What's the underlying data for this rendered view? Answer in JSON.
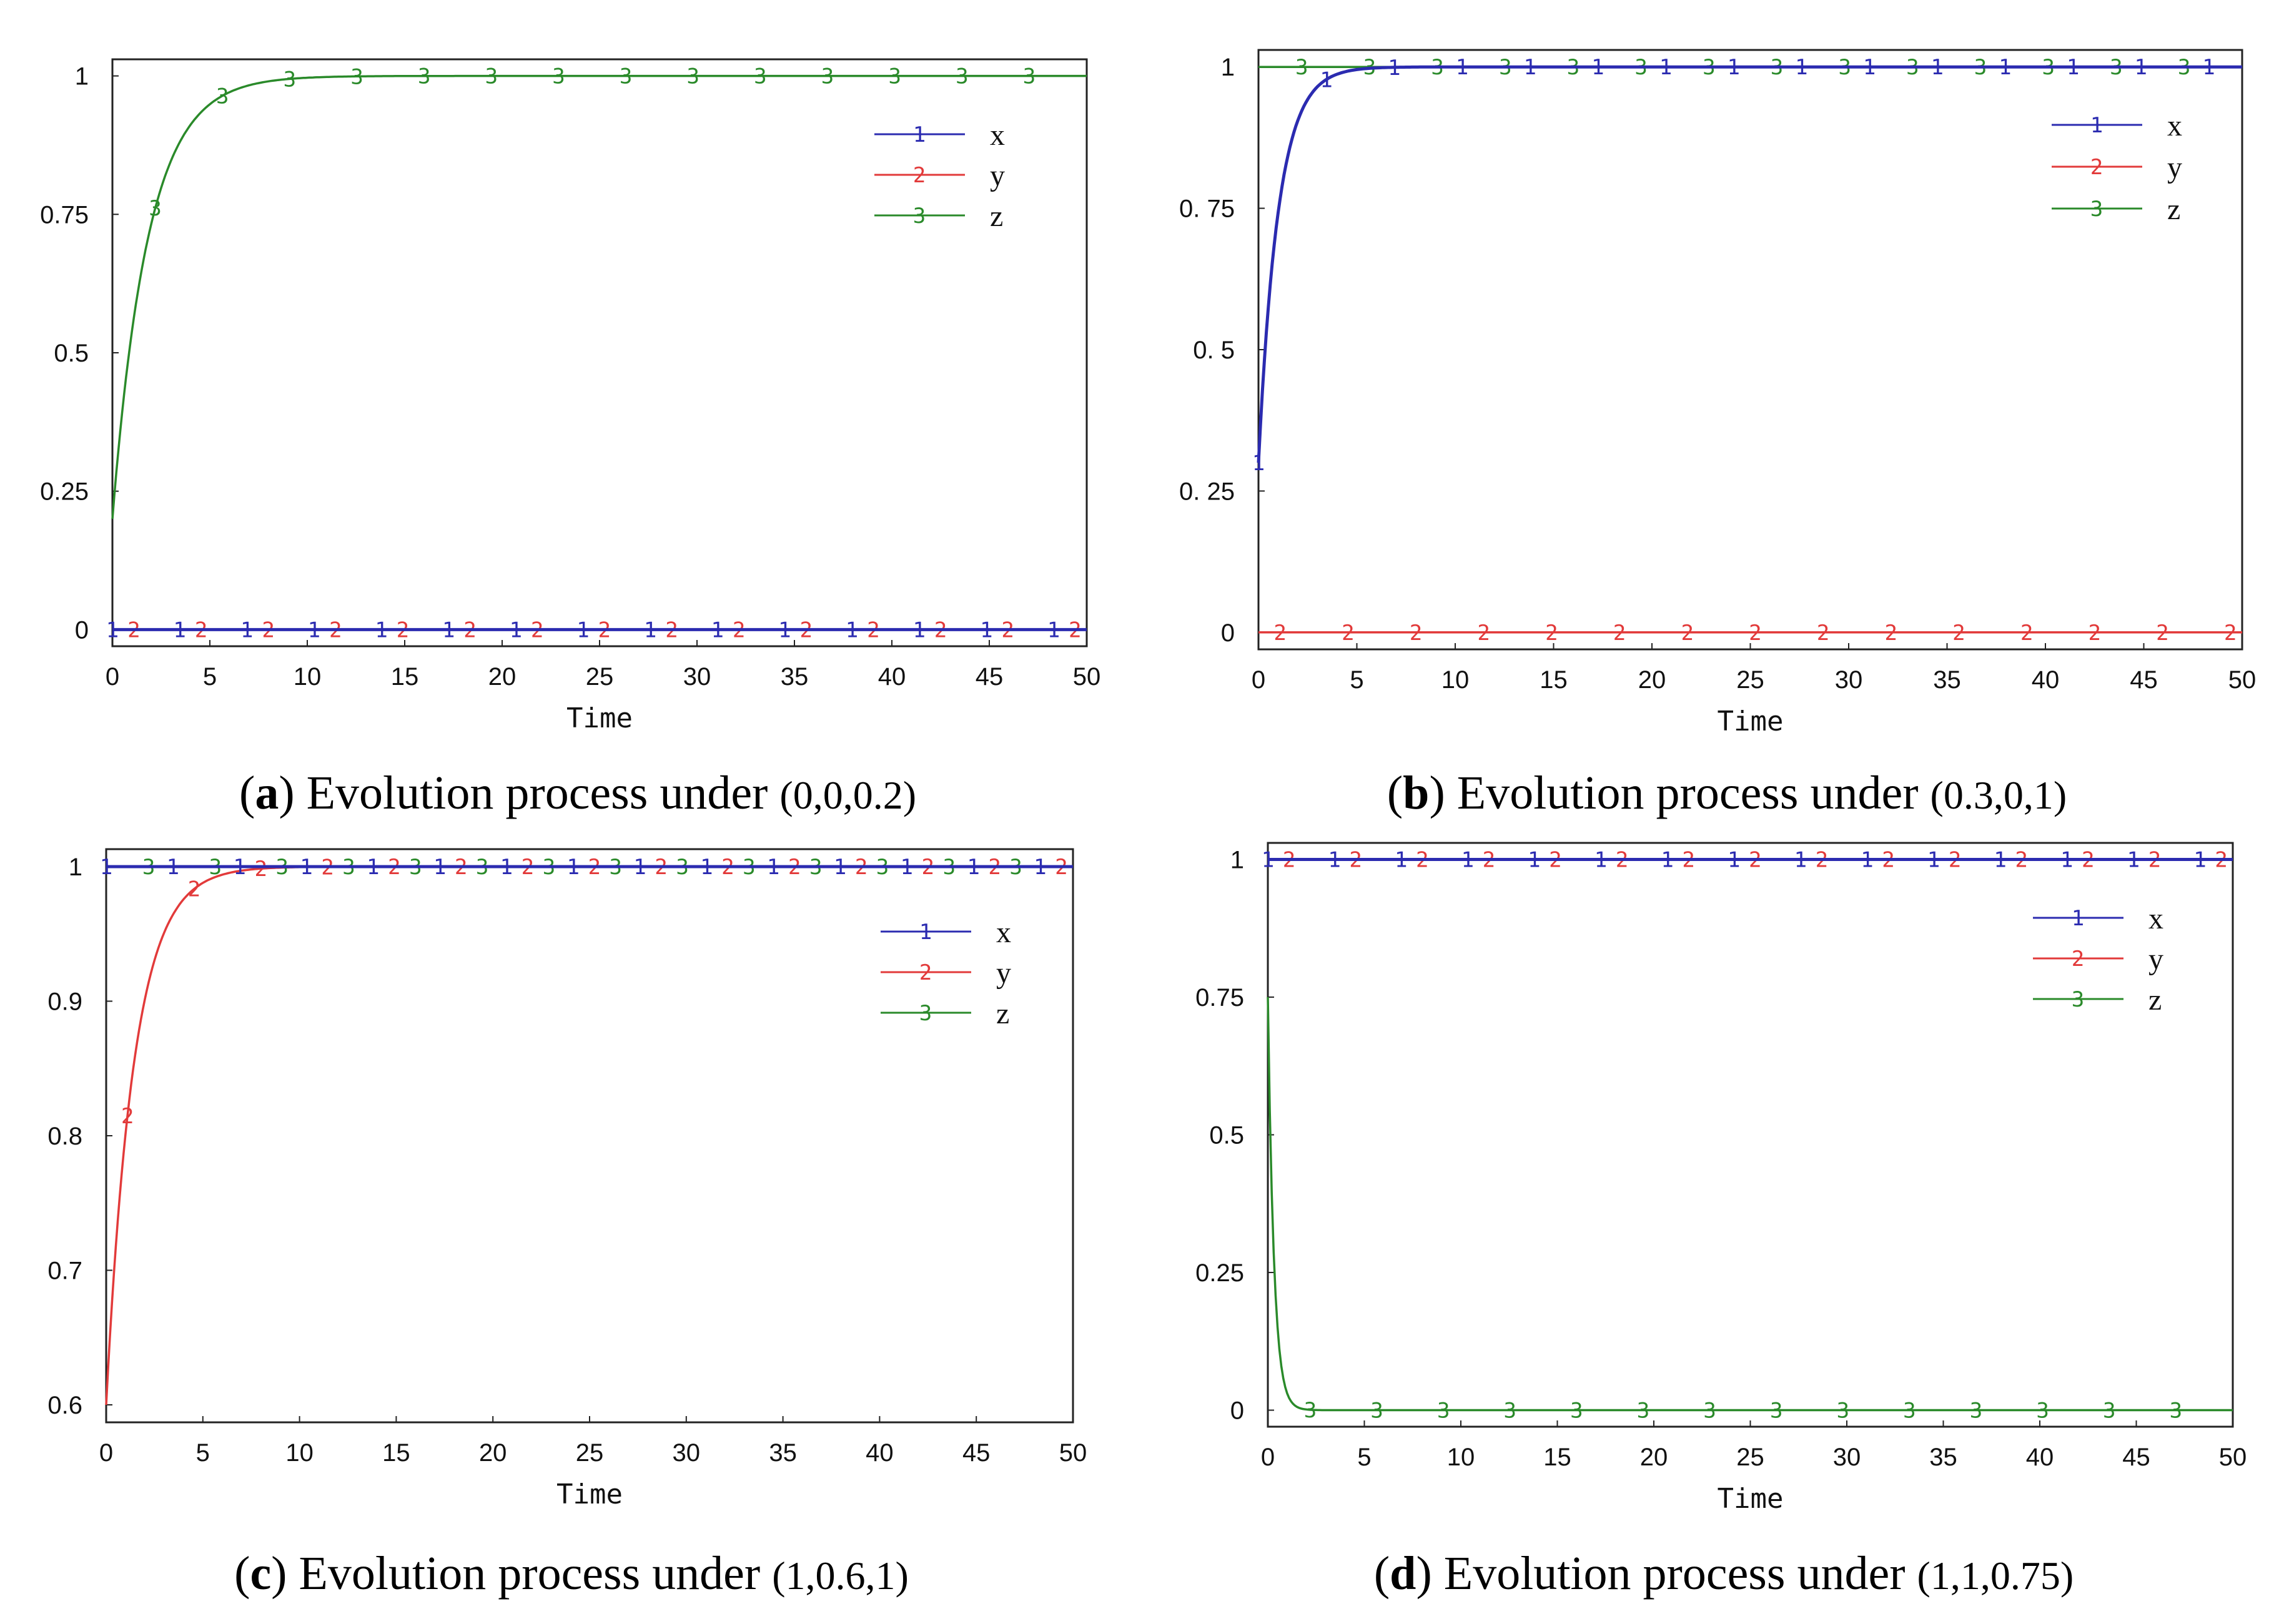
{
  "chart_data": [
    {
      "type": "line",
      "panel_letter": "a",
      "caption_text": "Evolution process under",
      "caption_tuple": "(0,0,0.2)",
      "xlabel": "Time",
      "ylabel": "",
      "xlim": [
        0,
        50
      ],
      "ylim": [
        -0.03,
        1.03
      ],
      "x_ticks": [
        0,
        5,
        10,
        15,
        20,
        25,
        30,
        35,
        40,
        45,
        50
      ],
      "x_tick_labels": [
        "0",
        "5",
        "10",
        "15",
        "20",
        "25",
        "30",
        "35",
        "40",
        "45",
        "50"
      ],
      "y_ticks": [
        0,
        0.25,
        0.5,
        0.75,
        1
      ],
      "y_tick_labels": [
        "0",
        "0.25",
        "0.5",
        "0.75",
        "1"
      ],
      "grid": false,
      "legend": "right",
      "series": [
        {
          "name": "x",
          "marker": "1",
          "color": "#2b2bb0",
          "start": 0,
          "end": 0,
          "rate": 1
        },
        {
          "name": "y",
          "marker": "2",
          "color": "#e23a3a",
          "start": 0,
          "end": 0,
          "rate": 1
        },
        {
          "name": "z",
          "marker": "3",
          "color": "#2a8a2a",
          "start": 0.2,
          "end": 1,
          "rate": 0.55
        }
      ]
    },
    {
      "type": "line",
      "panel_letter": "b",
      "caption_text": "Evolution process under",
      "caption_tuple": "(0.3,0,1)",
      "xlabel": "Time",
      "ylabel": "",
      "xlim": [
        0,
        50
      ],
      "ylim": [
        -0.03,
        1.03
      ],
      "x_ticks": [
        0,
        5,
        10,
        15,
        20,
        25,
        30,
        35,
        40,
        45,
        50
      ],
      "x_tick_labels": [
        "0",
        "5",
        "10",
        "15",
        "20",
        "25",
        "30",
        "35",
        "40",
        "45",
        "50"
      ],
      "y_ticks": [
        0,
        0.25,
        0.5,
        0.75,
        1
      ],
      "y_tick_labels": [
        "0",
        "0. 25",
        "0. 5",
        "0. 75",
        "1"
      ],
      "grid": false,
      "legend": "right",
      "series": [
        {
          "name": "x",
          "marker": "1",
          "color": "#2b2bb0",
          "start": 0.3,
          "end": 1,
          "rate": 1.0
        },
        {
          "name": "y",
          "marker": "2",
          "color": "#e23a3a",
          "start": 0,
          "end": 0,
          "rate": 1
        },
        {
          "name": "z",
          "marker": "3",
          "color": "#2a8a2a",
          "start": 1,
          "end": 1,
          "rate": 1
        }
      ]
    },
    {
      "type": "line",
      "panel_letter": "c",
      "caption_text": "Evolution process under",
      "caption_tuple": "(1,0.6,1)",
      "xlabel": "Time",
      "ylabel": "",
      "xlim": [
        0,
        50
      ],
      "ylim": [
        0.587,
        1.013
      ],
      "x_ticks": [
        0,
        5,
        10,
        15,
        20,
        25,
        30,
        35,
        40,
        45,
        50
      ],
      "x_tick_labels": [
        "0",
        "5",
        "10",
        "15",
        "20",
        "25",
        "30",
        "35",
        "40",
        "45",
        "50"
      ],
      "y_ticks": [
        0.6,
        0.7,
        0.8,
        0.9,
        1
      ],
      "y_tick_labels": [
        "0.6",
        "0.7",
        "0.8",
        "0.9",
        "1"
      ],
      "grid": false,
      "legend": "right",
      "series": [
        {
          "name": "x",
          "marker": "1",
          "color": "#2b2bb0",
          "start": 1,
          "end": 1,
          "rate": 1
        },
        {
          "name": "y",
          "marker": "2",
          "color": "#e23a3a",
          "start": 0.6,
          "end": 1,
          "rate": 0.7
        },
        {
          "name": "z",
          "marker": "3",
          "color": "#2a8a2a",
          "start": 1,
          "end": 1,
          "rate": 1
        }
      ]
    },
    {
      "type": "line",
      "panel_letter": "d",
      "caption_text": "Evolution process under",
      "caption_tuple": "(1,1,0.75)",
      "xlabel": "Time",
      "ylabel": "",
      "xlim": [
        0,
        50
      ],
      "ylim": [
        -0.03,
        1.03
      ],
      "x_ticks": [
        0,
        5,
        10,
        15,
        20,
        25,
        30,
        35,
        40,
        45,
        50
      ],
      "x_tick_labels": [
        "0",
        "5",
        "10",
        "15",
        "20",
        "25",
        "30",
        "35",
        "40",
        "45",
        "50"
      ],
      "y_ticks": [
        0,
        0.25,
        0.5,
        0.75,
        1
      ],
      "y_tick_labels": [
        "0",
        "0.25",
        "0.5",
        "0.75",
        "1"
      ],
      "grid": false,
      "legend": "right",
      "series": [
        {
          "name": "x",
          "marker": "1",
          "color": "#2b2bb0",
          "start": 1,
          "end": 1,
          "rate": 1
        },
        {
          "name": "y",
          "marker": "2",
          "color": "#e23a3a",
          "start": 1,
          "end": 1,
          "rate": 1
        },
        {
          "name": "z",
          "marker": "3",
          "color": "#2a8a2a",
          "start": 0.75,
          "end": 0,
          "rate": 3.2
        }
      ]
    }
  ]
}
